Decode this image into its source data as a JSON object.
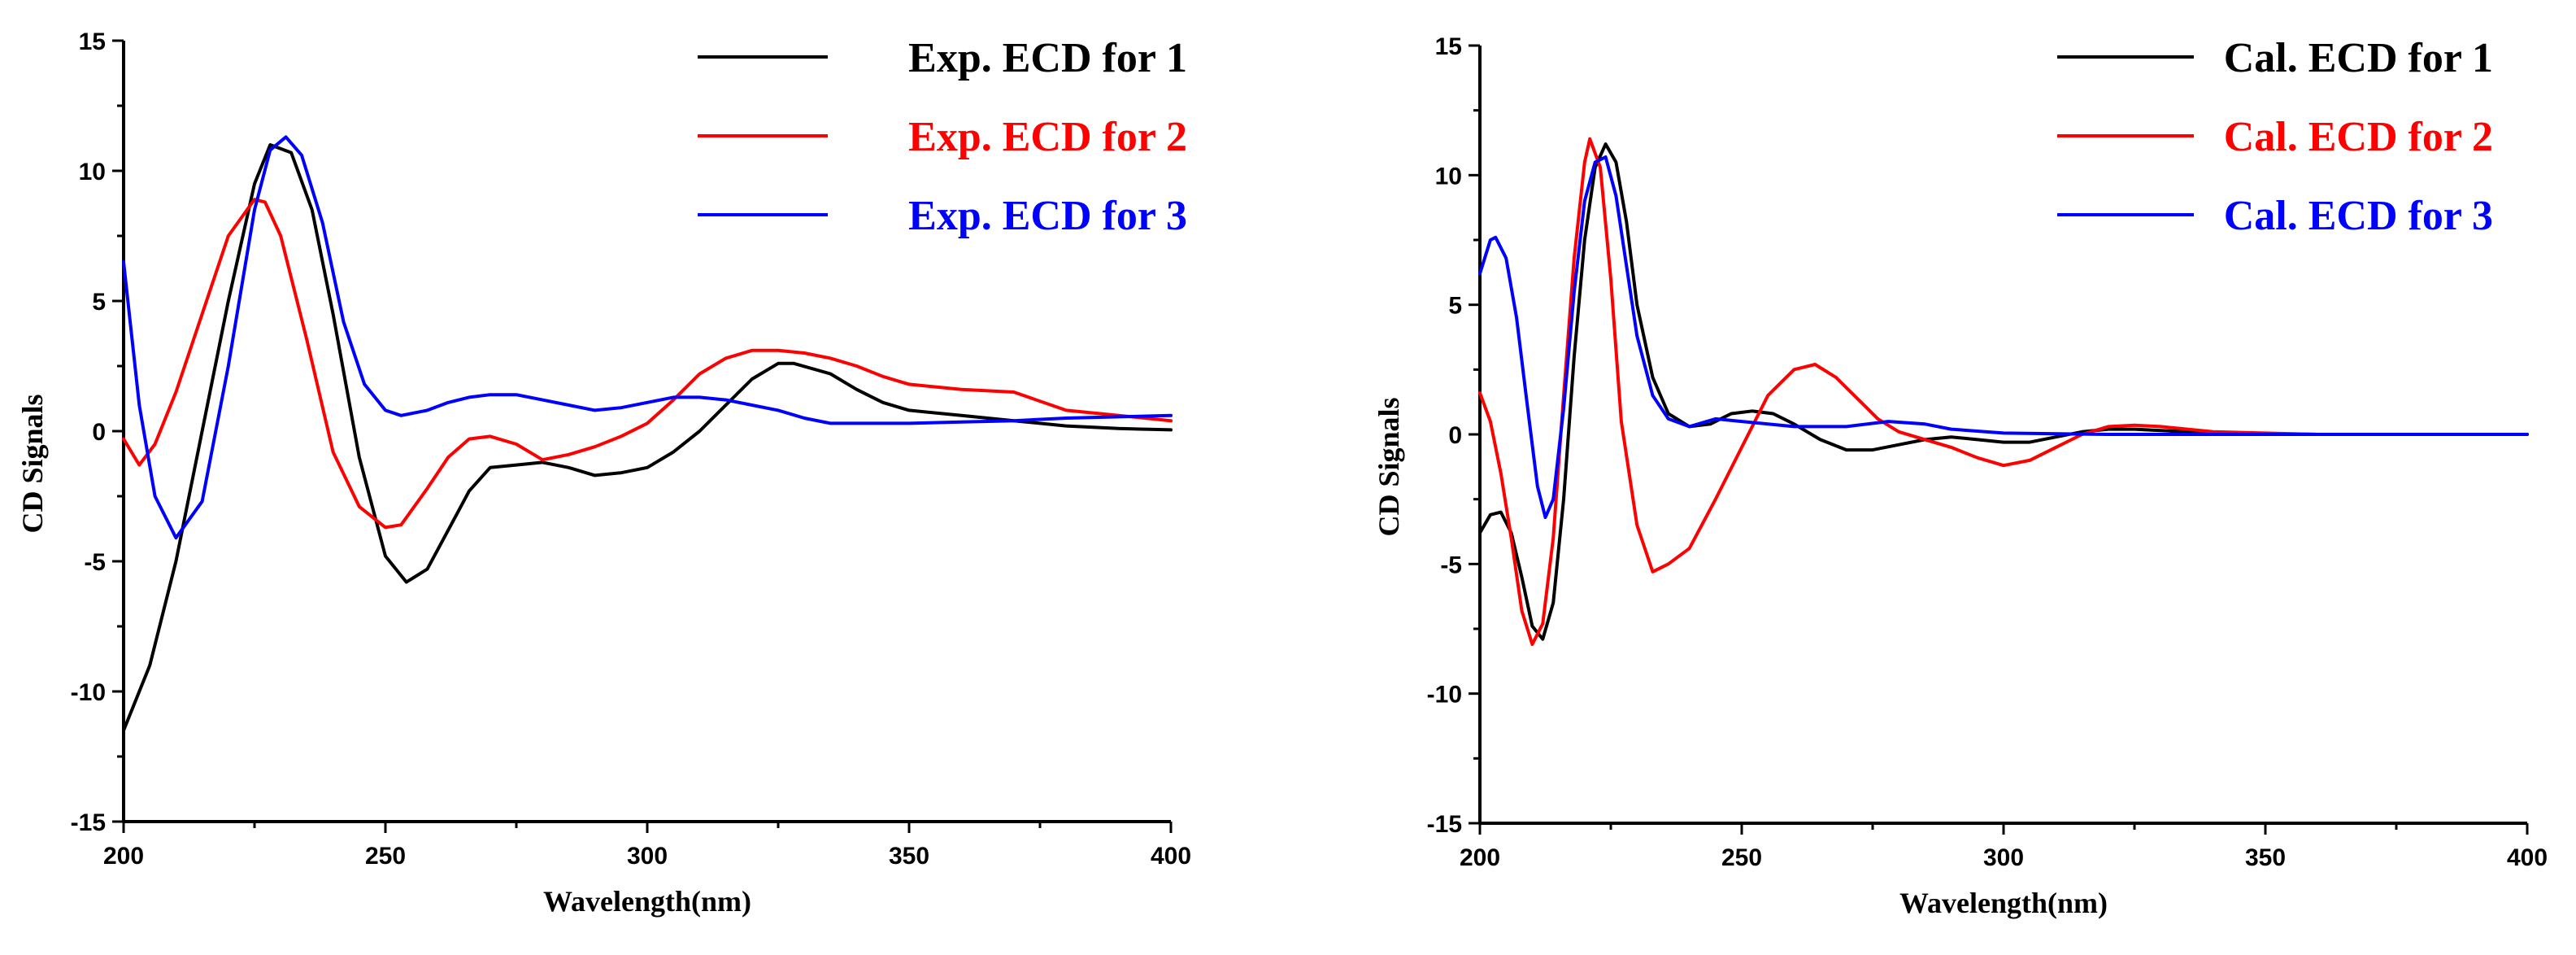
{
  "chart_data": [
    {
      "type": "line",
      "xlabel": "Wavelength(nm)",
      "ylabel": "CD Signals",
      "xlim": [
        200,
        400
      ],
      "ylim": [
        -15,
        15
      ],
      "xticks": [
        "200",
        "250",
        "300",
        "350",
        "400"
      ],
      "yticks": [
        "-15",
        "-10",
        "-5",
        "0",
        "5",
        "10",
        "15"
      ],
      "legend_position": "top-right",
      "grid": false,
      "series": [
        {
          "name": "Exp. ECD for 1",
          "color": "#000000",
          "x": [
            200,
            205,
            210,
            215,
            220,
            225,
            228,
            232,
            236,
            240,
            245,
            250,
            254,
            258,
            262,
            266,
            270,
            275,
            280,
            285,
            290,
            295,
            300,
            305,
            310,
            315,
            320,
            325,
            328,
            335,
            340,
            345,
            350,
            360,
            370,
            380,
            390,
            400
          ],
          "y": [
            -11.5,
            -9,
            -5,
            0,
            5,
            9.5,
            11,
            10.7,
            8.5,
            4.5,
            -1,
            -4.8,
            -5.8,
            -5.3,
            -3.8,
            -2.3,
            -1.4,
            -1.3,
            -1.2,
            -1.4,
            -1.7,
            -1.6,
            -1.4,
            -0.8,
            0,
            1,
            2,
            2.6,
            2.6,
            2.2,
            1.6,
            1.1,
            0.8,
            0.6,
            0.4,
            0.2,
            0.1,
            0.05
          ]
        },
        {
          "name": "Exp. ECD for 2",
          "color": "#ff0000",
          "x": [
            200,
            203,
            206,
            210,
            215,
            220,
            225,
            227,
            230,
            235,
            240,
            245,
            250,
            253,
            258,
            262,
            266,
            270,
            275,
            280,
            285,
            290,
            295,
            300,
            305,
            310,
            315,
            320,
            325,
            330,
            335,
            340,
            345,
            350,
            360,
            370,
            380,
            390,
            400
          ],
          "y": [
            -0.3,
            -1.3,
            -0.5,
            1.5,
            4.5,
            7.5,
            8.9,
            8.8,
            7.5,
            3.5,
            -0.8,
            -2.9,
            -3.7,
            -3.6,
            -2.2,
            -1,
            -0.3,
            -0.2,
            -0.5,
            -1.1,
            -0.9,
            -0.6,
            -0.2,
            0.3,
            1.2,
            2.2,
            2.8,
            3.1,
            3.1,
            3,
            2.8,
            2.5,
            2.1,
            1.8,
            1.6,
            1.5,
            0.8,
            0.6,
            0.4
          ]
        },
        {
          "name": "Exp. ECD for 3",
          "color": "#0000ff",
          "x": [
            200,
            203,
            206,
            210,
            215,
            220,
            225,
            228,
            231,
            234,
            238,
            242,
            246,
            250,
            253,
            258,
            262,
            266,
            270,
            275,
            280,
            285,
            290,
            295,
            300,
            305,
            310,
            315,
            320,
            325,
            330,
            335,
            340,
            350,
            360,
            370,
            380,
            390,
            400
          ],
          "y": [
            6.5,
            1,
            -2.5,
            -4.1,
            -2.7,
            2.5,
            8.5,
            10.8,
            11.3,
            10.6,
            8,
            4.2,
            1.8,
            0.8,
            0.6,
            0.8,
            1.1,
            1.3,
            1.4,
            1.4,
            1.2,
            1,
            0.8,
            0.9,
            1.1,
            1.3,
            1.3,
            1.2,
            1,
            0.8,
            0.5,
            0.3,
            0.3,
            0.3,
            0.35,
            0.4,
            0.5,
            0.55,
            0.6
          ]
        }
      ]
    },
    {
      "type": "line",
      "xlabel": "Wavelength(nm)",
      "ylabel": "CD Signals",
      "xlim": [
        200,
        400
      ],
      "ylim": [
        -15,
        15
      ],
      "xticks": [
        "200",
        "250",
        "300",
        "350",
        "400"
      ],
      "yticks": [
        "-15",
        "-10",
        "-5",
        "0",
        "5",
        "10",
        "15"
      ],
      "legend_position": "top-right",
      "grid": false,
      "series": [
        {
          "name": "Cal. ECD for 1",
          "color": "#000000",
          "x": [
            200,
            202,
            204,
            206,
            208,
            210,
            212,
            214,
            216,
            218,
            220,
            222,
            224,
            226,
            228,
            230,
            233,
            236,
            240,
            244,
            248,
            252,
            256,
            260,
            265,
            270,
            275,
            280,
            285,
            290,
            295,
            300,
            305,
            310,
            315,
            320,
            325,
            330,
            340,
            360,
            380,
            400
          ],
          "y": [
            -3.8,
            -3.1,
            -3.0,
            -3.8,
            -5.5,
            -7.4,
            -7.9,
            -6.5,
            -2.5,
            3,
            7.5,
            10.3,
            11.2,
            10.5,
            8.2,
            5,
            2.2,
            0.8,
            0.3,
            0.4,
            0.8,
            0.9,
            0.8,
            0.4,
            -0.2,
            -0.6,
            -0.6,
            -0.4,
            -0.2,
            -0.1,
            -0.2,
            -0.3,
            -0.3,
            -0.1,
            0.1,
            0.2,
            0.2,
            0.15,
            0.05,
            0,
            0,
            0
          ]
        },
        {
          "name": "Cal. ECD for 2",
          "color": "#ff0000",
          "x": [
            200,
            202,
            204,
            206,
            208,
            210,
            212,
            214,
            216,
            218,
            220,
            221,
            223,
            225,
            227,
            230,
            233,
            236,
            240,
            245,
            250,
            255,
            260,
            264,
            268,
            272,
            276,
            280,
            285,
            290,
            295,
            300,
            305,
            310,
            315,
            320,
            325,
            330,
            340,
            360,
            380,
            400
          ],
          "y": [
            1.6,
            0.5,
            -1.5,
            -4,
            -6.8,
            -8.1,
            -7.3,
            -4,
            1.5,
            6.8,
            10.5,
            11.4,
            10.3,
            6,
            0.5,
            -3.5,
            -5.3,
            -5,
            -4.4,
            -2.5,
            -0.5,
            1.5,
            2.5,
            2.7,
            2.2,
            1.4,
            0.6,
            0.1,
            -0.2,
            -0.5,
            -0.9,
            -1.2,
            -1,
            -0.5,
            0,
            0.3,
            0.35,
            0.3,
            0.1,
            0,
            0,
            0
          ]
        },
        {
          "name": "Cal. ECD for 3",
          "color": "#0000ff",
          "x": [
            200,
            202,
            203,
            205,
            207,
            209,
            211,
            212.5,
            214,
            216,
            218,
            220,
            222,
            224,
            226,
            228,
            230,
            233,
            236,
            240,
            245,
            250,
            260,
            270,
            278,
            285,
            290,
            300,
            320,
            360,
            400
          ],
          "y": [
            6.2,
            7.5,
            7.6,
            6.8,
            4.5,
            1.2,
            -2,
            -3.2,
            -2.5,
            1,
            5.5,
            9,
            10.5,
            10.7,
            9.2,
            6.5,
            3.8,
            1.5,
            0.6,
            0.3,
            0.6,
            0.5,
            0.3,
            0.3,
            0.5,
            0.4,
            0.2,
            0.05,
            0,
            0,
            0
          ]
        }
      ]
    }
  ]
}
